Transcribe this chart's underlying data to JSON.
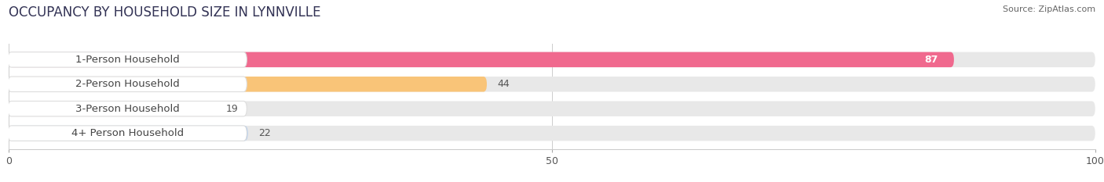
{
  "title": "OCCUPANCY BY HOUSEHOLD SIZE IN LYNNVILLE",
  "source": "Source: ZipAtlas.com",
  "categories": [
    "1-Person Household",
    "2-Person Household",
    "3-Person Household",
    "4+ Person Household"
  ],
  "values": [
    87,
    44,
    19,
    22
  ],
  "bar_colors": [
    "#f0698e",
    "#f9c478",
    "#f5b0ac",
    "#a8c8f0"
  ],
  "value_inside": [
    true,
    false,
    false,
    false
  ],
  "xlim": [
    0,
    100
  ],
  "xticks": [
    0,
    50,
    100
  ],
  "background_color": "#ffffff",
  "bar_background_color": "#e8e8e8",
  "title_fontsize": 12,
  "source_fontsize": 8,
  "label_fontsize": 9.5,
  "value_fontsize": 9
}
